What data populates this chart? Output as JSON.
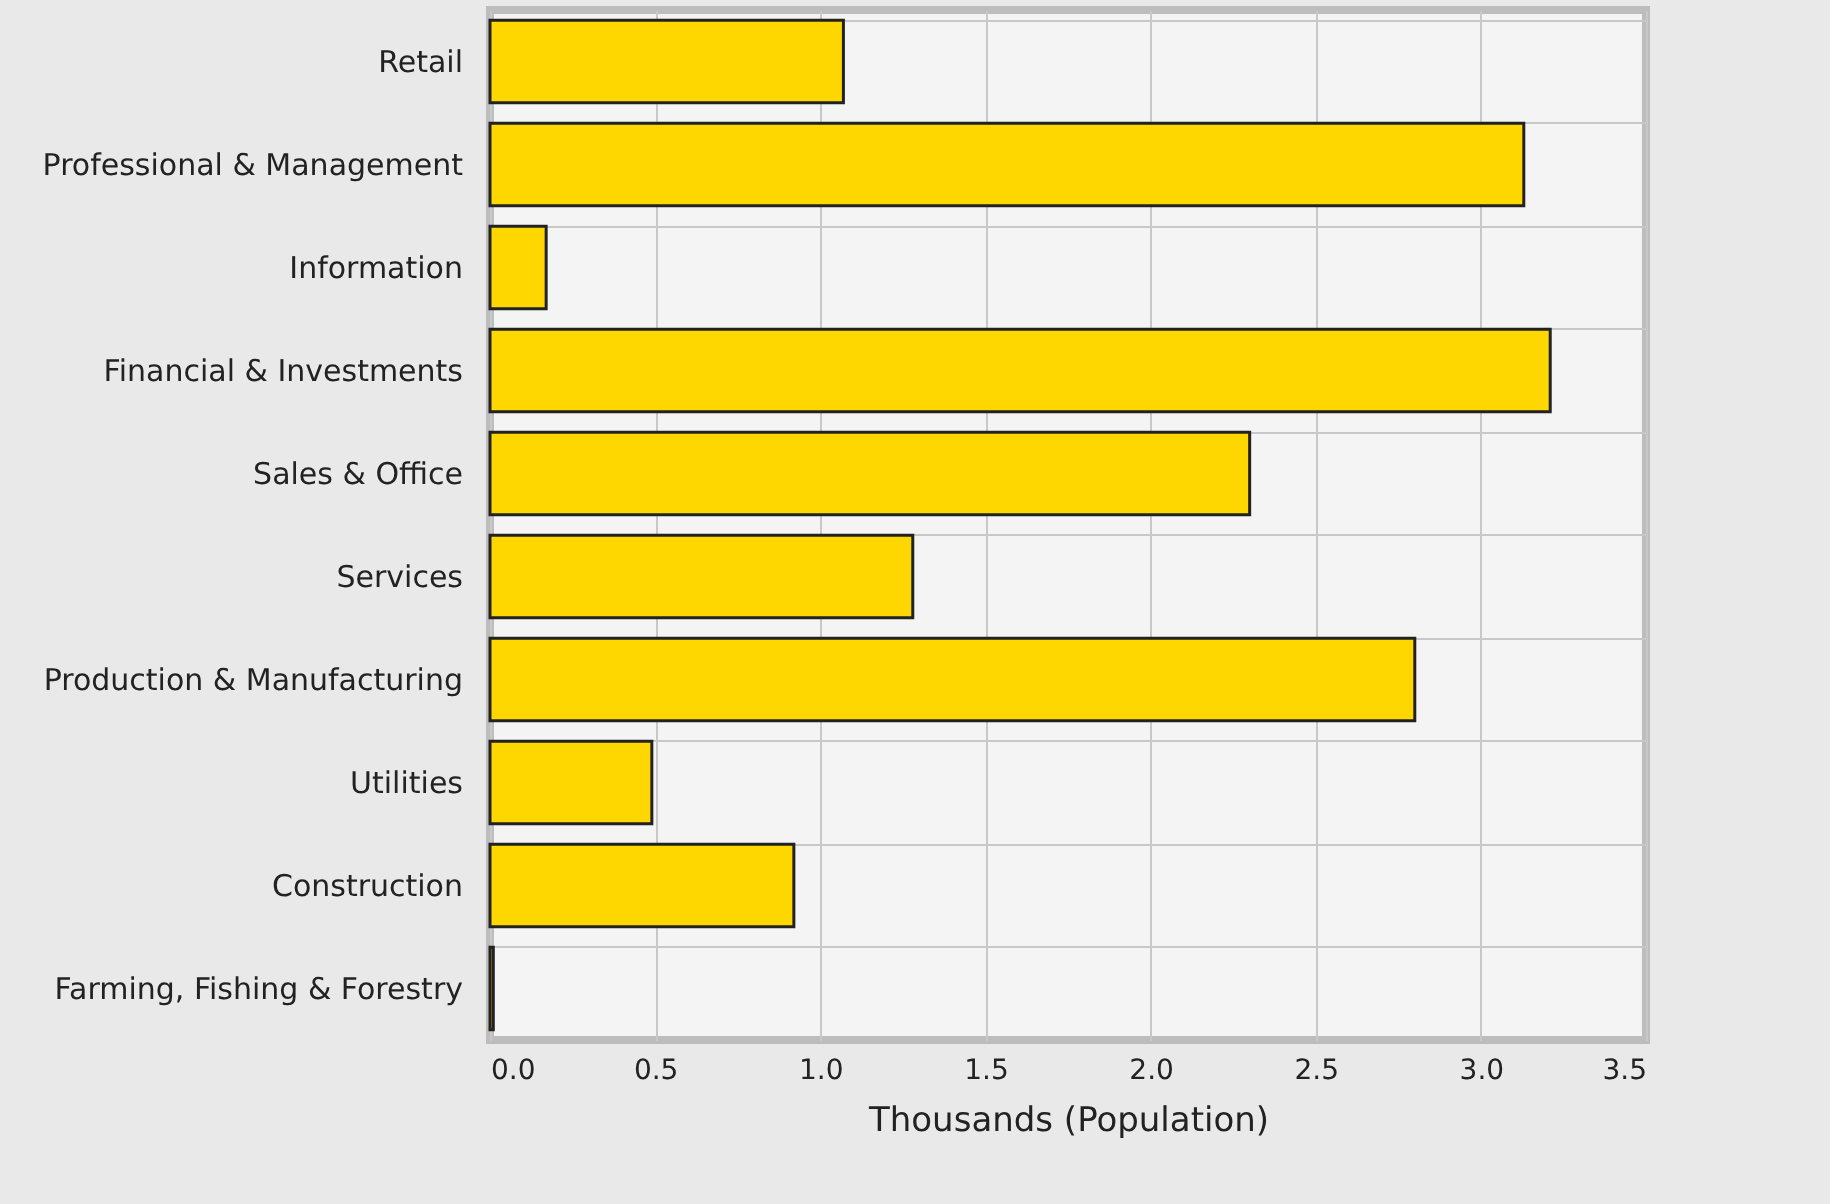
{
  "chart_data": {
    "type": "bar",
    "orientation": "horizontal",
    "xlabel": "Thousands (Population)",
    "categories": [
      "Retail",
      "Professional & Management",
      "Information",
      "Financial & Investments",
      "Sales & Office",
      "Services",
      "Production & Manufacturing",
      "Utilities",
      "Construction",
      "Farming, Fishing & Forestry"
    ],
    "values": [
      1.07,
      3.13,
      0.17,
      3.21,
      2.3,
      1.28,
      2.8,
      0.49,
      0.92,
      0.01
    ],
    "color": "#ffd700",
    "xlim": [
      0,
      3.5
    ],
    "xticks": [
      {
        "value": 0,
        "label": "0.0"
      },
      {
        "value": 0.5,
        "label": "0.5"
      },
      {
        "value": 1,
        "label": "1.0"
      },
      {
        "value": 1.5,
        "label": "1.5"
      },
      {
        "value": 2,
        "label": "2.0"
      },
      {
        "value": 2.5,
        "label": "2.5"
      },
      {
        "value": 3,
        "label": "3.0"
      },
      {
        "value": 3.5,
        "label": "3.5"
      }
    ],
    "grid": true
  }
}
